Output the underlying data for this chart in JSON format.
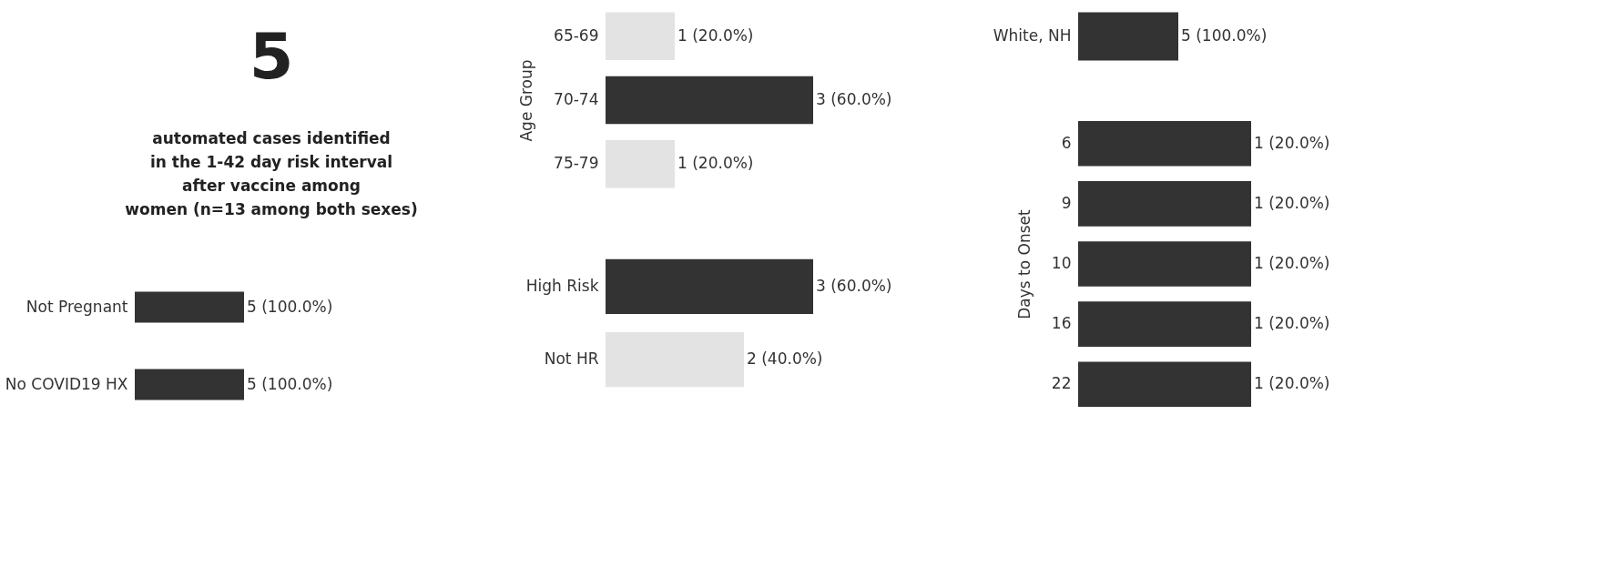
{
  "chart_data": [
    {
      "type": "other",
      "title": "5",
      "subtitle": "automated cases identified\nin the 1-42 day risk interval\nafter vaccine among\nwomen (n=13 among both sexes)"
    },
    {
      "type": "bar",
      "orientation": "horizontal",
      "tick_labels": "y",
      "categories": [
        "Not Pregnant"
      ],
      "values": [
        5
      ],
      "value_labels": [
        "5 (100.0%)"
      ],
      "colors": [
        "#333333"
      ]
    },
    {
      "type": "bar",
      "orientation": "horizontal",
      "tick_labels": "y",
      "categories": [
        "No COVID19 HX"
      ],
      "values": [
        5
      ],
      "value_labels": [
        "5 (100.0%)"
      ],
      "colors": [
        "#333333"
      ]
    },
    {
      "type": "bar",
      "orientation": "horizontal",
      "tick_labels": "y",
      "ylabel": "Age Group",
      "categories": [
        "65-69",
        "70-74",
        "75-79"
      ],
      "values": [
        1,
        3,
        1
      ],
      "value_labels": [
        "1 (20.0%)",
        "3 (60.0%)",
        "1 (20.0%)"
      ],
      "colors": [
        "#e3e3e3",
        "#333333",
        "#e3e3e3"
      ]
    },
    {
      "type": "bar",
      "orientation": "horizontal",
      "tick_labels": "y",
      "categories": [
        "High Risk",
        "Not HR"
      ],
      "values": [
        3,
        2
      ],
      "value_labels": [
        "3 (60.0%)",
        "2 (40.0%)"
      ],
      "colors": [
        "#333333",
        "#e3e3e3"
      ]
    },
    {
      "type": "bar",
      "orientation": "horizontal",
      "tick_labels": "y",
      "categories": [
        "White, NH"
      ],
      "values": [
        5
      ],
      "value_labels": [
        "5 (100.0%)"
      ],
      "colors": [
        "#333333"
      ]
    },
    {
      "type": "bar",
      "orientation": "horizontal",
      "tick_labels": "y",
      "ylabel": "Days to Onset",
      "categories": [
        "6",
        "9",
        "10",
        "16",
        "22"
      ],
      "values": [
        1,
        1,
        1,
        1,
        1
      ],
      "value_labels": [
        "1 (20.0%)",
        "1 (20.0%)",
        "1 (20.0%)",
        "1 (20.0%)",
        "1 (20.0%)"
      ],
      "colors": [
        "#333333",
        "#333333",
        "#333333",
        "#333333",
        "#333333"
      ]
    }
  ]
}
